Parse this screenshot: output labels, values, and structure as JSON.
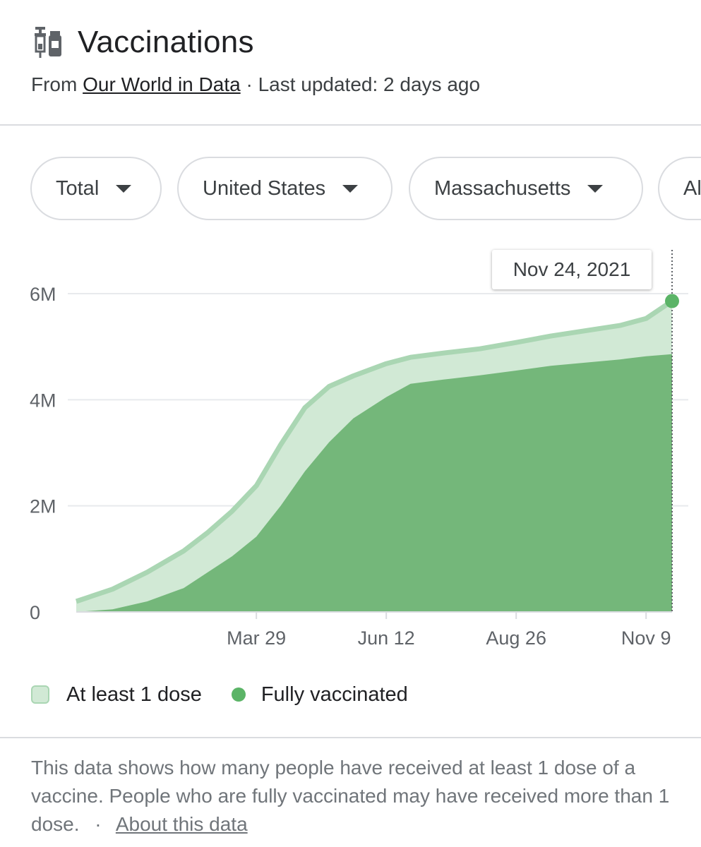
{
  "header": {
    "title": "Vaccinations",
    "source_prefix": "From",
    "source_link": "Our World in Data",
    "separator": "·",
    "last_updated": "Last updated: 2 days ago"
  },
  "icons": {
    "title_icon": "vaccine-icon",
    "chip_caret": "caret-down-icon"
  },
  "filters": [
    {
      "label": "Total"
    },
    {
      "label": "United States"
    },
    {
      "label": "Massachusetts"
    },
    {
      "label": "Al"
    }
  ],
  "tooltip": {
    "label": "Nov 24, 2021"
  },
  "colors": {
    "dose1_fill": "#d1e9d5",
    "dose1_line": "#aad6b3",
    "full_fill": "#74b77a",
    "marker": "#5bb467"
  },
  "chart_data": {
    "type": "area",
    "x_tick_labels": [
      "Mar 29",
      "Jun 12",
      "Aug 26",
      "Nov 9"
    ],
    "y_tick_labels": [
      "0",
      "2M",
      "4M",
      "6M"
    ],
    "ylim": [
      0,
      6000000
    ],
    "xlim": [
      "2020-12-15",
      "2021-11-24"
    ],
    "grid": true,
    "legend": "bottom",
    "series": [
      {
        "name": "At least 1 dose",
        "x": [
          "2020-12-15",
          "2021-01-05",
          "2021-01-25",
          "2021-02-15",
          "2021-03-01",
          "2021-03-15",
          "2021-03-29",
          "2021-04-12",
          "2021-04-26",
          "2021-05-10",
          "2021-05-24",
          "2021-06-12",
          "2021-06-26",
          "2021-07-15",
          "2021-08-05",
          "2021-08-26",
          "2021-09-15",
          "2021-10-05",
          "2021-10-25",
          "2021-11-09",
          "2021-11-24"
        ],
        "values": [
          200000,
          430000,
          750000,
          1150000,
          1500000,
          1900000,
          2380000,
          3150000,
          3850000,
          4250000,
          4450000,
          4680000,
          4800000,
          4880000,
          4960000,
          5080000,
          5200000,
          5300000,
          5400000,
          5530000,
          5860000
        ]
      },
      {
        "name": "Fully vaccinated",
        "x": [
          "2020-12-15",
          "2021-01-05",
          "2021-01-25",
          "2021-02-15",
          "2021-03-01",
          "2021-03-15",
          "2021-03-29",
          "2021-04-12",
          "2021-04-26",
          "2021-05-10",
          "2021-05-24",
          "2021-06-12",
          "2021-06-26",
          "2021-07-15",
          "2021-08-05",
          "2021-08-26",
          "2021-09-15",
          "2021-10-05",
          "2021-10-25",
          "2021-11-09",
          "2021-11-24"
        ],
        "values": [
          0,
          50000,
          200000,
          450000,
          750000,
          1050000,
          1420000,
          2000000,
          2650000,
          3200000,
          3650000,
          4050000,
          4300000,
          4380000,
          4460000,
          4550000,
          4640000,
          4700000,
          4760000,
          4820000,
          4860000
        ]
      }
    ]
  },
  "legend": {
    "dose1_label": "At least 1 dose",
    "full_label": "Fully vaccinated"
  },
  "footer": {
    "note": "This data shows how many people have received at least 1 dose of a vaccine. People who are fully vaccinated may have received more than 1 dose.",
    "separator": "·",
    "about_link": "About this data"
  }
}
